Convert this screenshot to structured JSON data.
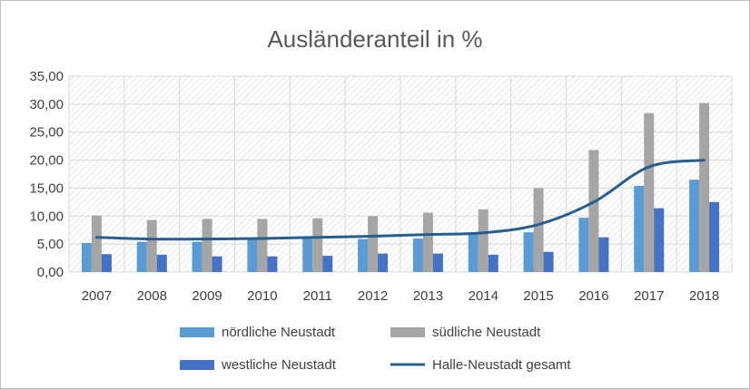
{
  "chart_data": {
    "type": "bar",
    "title": "Ausländeranteil in %",
    "xlabel": "",
    "ylabel": "",
    "categories": [
      "2007",
      "2008",
      "2009",
      "2010",
      "2011",
      "2012",
      "2013",
      "2014",
      "2015",
      "2016",
      "2017",
      "2018"
    ],
    "y_ticks": [
      "0,00",
      "5,00",
      "10,00",
      "15,00",
      "20,00",
      "25,00",
      "30,00",
      "35,00"
    ],
    "ylim": [
      0,
      35
    ],
    "grid": true,
    "legend_position": "bottom",
    "series": [
      {
        "name": "nördliche Neustadt",
        "kind": "bar",
        "color": "#5b9bd5",
        "values": [
          5.2,
          5.4,
          5.4,
          6.0,
          6.2,
          5.9,
          6.0,
          6.7,
          7.1,
          9.7,
          15.4,
          16.5
        ]
      },
      {
        "name": "südliche Neustadt",
        "kind": "bar",
        "color": "#a5a5a5",
        "values": [
          10.1,
          9.3,
          9.5,
          9.5,
          9.6,
          10.0,
          10.6,
          11.2,
          15.0,
          21.8,
          28.4,
          30.2
        ]
      },
      {
        "name": "westliche Neustadt",
        "kind": "bar",
        "color": "#4472c4",
        "values": [
          3.2,
          3.1,
          2.8,
          2.8,
          2.9,
          3.3,
          3.3,
          3.1,
          3.6,
          6.2,
          11.4,
          12.5
        ]
      },
      {
        "name": "Halle-Neustadt gesamt",
        "kind": "line",
        "color": "#255e91",
        "values": [
          6.2,
          5.9,
          5.9,
          6.0,
          6.2,
          6.4,
          6.7,
          7.0,
          8.5,
          12.5,
          18.8,
          20.0
        ]
      }
    ]
  }
}
